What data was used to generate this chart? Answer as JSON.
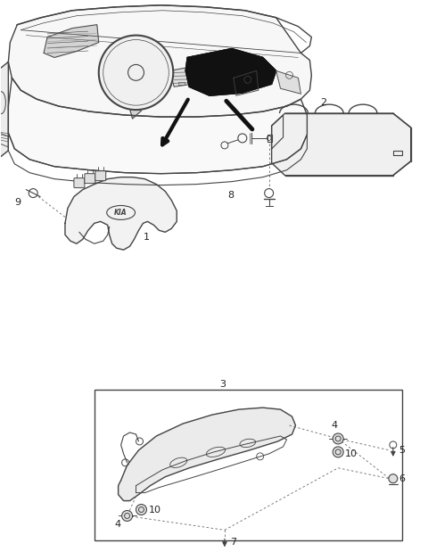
{
  "bg_color": "#ffffff",
  "lc": "#444444",
  "dc": "#111111",
  "fig_width": 4.8,
  "fig_height": 6.28,
  "dpi": 100
}
